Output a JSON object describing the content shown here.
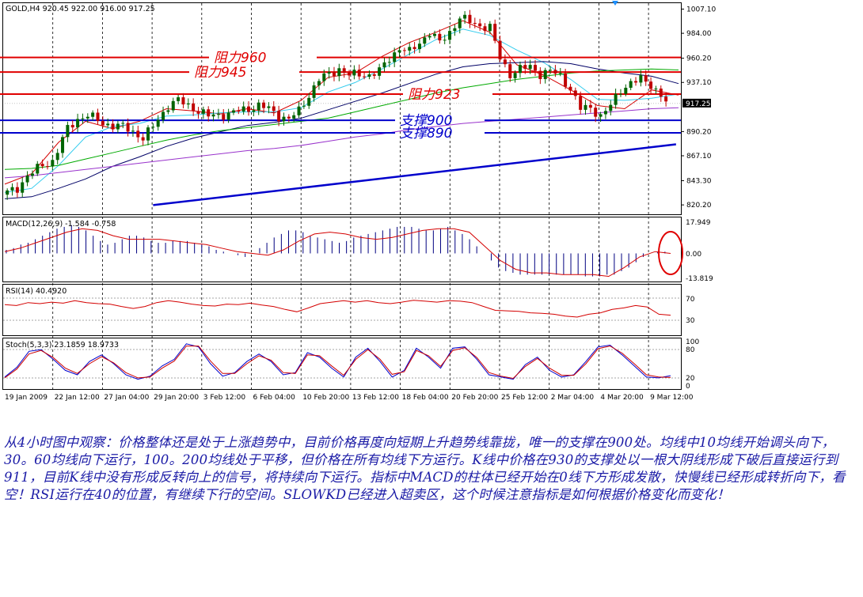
{
  "chart_data": [
    {
      "type": "candlestick",
      "symbol": "GOLD,H4",
      "header_values": "920.45 922.00 916.00 917.25",
      "title": "GOLD,H4 920.45 922.00 916.00 917.25",
      "ylim": [
        812,
        1012
      ],
      "y_ticks": [
        820.2,
        843.3,
        867.1,
        890.2,
        937.1,
        960.2,
        984.0,
        1007.1
      ],
      "y_tick_labels": [
        "820.20",
        "843.30",
        "867.10",
        "890.20",
        "937.10",
        "960.20",
        "984.00",
        "1007.10"
      ],
      "price_label": "917.25",
      "x_tick_labels": [
        "19 Jan 2009",
        "22 Jan 12:00",
        "27 Jan 04:00",
        "29 Jan 20:00",
        "3 Feb 12:00",
        "6 Feb 04:00",
        "10 Feb 20:00",
        "13 Feb 12:00",
        "18 Feb 04:00",
        "20 Feb 20:00",
        "25 Feb 12:00",
        "2 Mar 04:00",
        "4 Mar 20:00",
        "9 Mar 12:00"
      ],
      "close_path": [
        [
          0,
          832
        ],
        [
          2,
          836
        ],
        [
          4,
          848
        ],
        [
          7,
          858
        ],
        [
          9,
          862
        ],
        [
          12,
          893
        ],
        [
          14,
          902
        ],
        [
          16,
          906
        ],
        [
          19,
          898
        ],
        [
          21,
          896
        ],
        [
          23,
          895
        ],
        [
          25,
          890
        ],
        [
          27,
          884
        ],
        [
          29,
          895
        ],
        [
          32,
          915
        ],
        [
          34,
          920
        ],
        [
          36,
          915
        ],
        [
          38,
          910
        ],
        [
          40,
          905
        ],
        [
          42,
          906
        ],
        [
          44,
          907
        ],
        [
          46,
          910
        ],
        [
          48,
          912
        ],
        [
          50,
          915
        ],
        [
          52,
          912
        ],
        [
          54,
          905
        ],
        [
          56,
          902
        ],
        [
          58,
          910
        ],
        [
          60,
          925
        ],
        [
          62,
          940
        ],
        [
          64,
          945
        ],
        [
          66,
          950
        ],
        [
          68,
          944
        ],
        [
          70,
          945
        ],
        [
          72,
          944
        ],
        [
          74,
          948
        ],
        [
          76,
          960
        ],
        [
          78,
          970
        ],
        [
          80,
          966
        ],
        [
          82,
          975
        ],
        [
          84,
          985
        ],
        [
          86,
          975
        ],
        [
          88,
          985
        ],
        [
          90,
          999
        ],
        [
          92,
          995
        ],
        [
          94,
          991
        ],
        [
          96,
          990
        ],
        [
          98,
          960
        ],
        [
          100,
          945
        ],
        [
          102,
          950
        ],
        [
          104,
          952
        ],
        [
          106,
          945
        ],
        [
          108,
          948
        ],
        [
          110,
          943
        ],
        [
          112,
          931
        ],
        [
          114,
          912
        ],
        [
          116,
          913
        ],
        [
          118,
          905
        ],
        [
          120,
          915
        ],
        [
          122,
          930
        ],
        [
          124,
          937
        ],
        [
          126,
          940
        ],
        [
          128,
          935
        ],
        [
          130,
          925
        ],
        [
          131,
          918
        ]
      ],
      "high": 1002,
      "low": 826,
      "moving_averages": [
        {
          "name": "10",
          "color": "#d40000",
          "values": [
            840,
            850,
            880,
            900,
            893,
            900,
            912,
            910,
            907,
            912,
            908,
            920,
            942,
            946,
            962,
            975,
            985,
            996,
            985,
            954,
            944,
            930,
            915,
            912,
            930,
            925
          ]
        },
        {
          "name": "20",
          "color": "#33ccee",
          "values": [
            832,
            836,
            858,
            885,
            895,
            898,
            905,
            906,
            908,
            909,
            909,
            913,
            928,
            937,
            950,
            964,
            978,
            988,
            982,
            968,
            956,
            940,
            921,
            920,
            922,
            926
          ]
        },
        {
          "name": "60",
          "color": "#000066",
          "values": [
            826,
            828,
            836,
            845,
            857,
            866,
            876,
            884,
            890,
            896,
            899,
            903,
            911,
            919,
            927,
            936,
            945,
            952,
            955,
            956,
            957,
            955,
            950,
            946,
            943,
            936
          ]
        },
        {
          "name": "100",
          "color": "#00aa00",
          "values": [
            854,
            855,
            858,
            864,
            870,
            876,
            882,
            887,
            891,
            894,
            897,
            900,
            903,
            909,
            915,
            921,
            927,
            932,
            936,
            940,
            943,
            946,
            948,
            949,
            950,
            949
          ]
        },
        {
          "name": "200",
          "color": "#9933cc",
          "values": [
            846,
            848,
            851,
            854,
            857,
            860,
            863,
            866,
            869,
            872,
            874,
            877,
            881,
            885,
            888,
            892,
            895,
            898,
            900,
            902,
            904,
            906,
            908,
            910,
            912,
            913
          ]
        }
      ],
      "horizontal_levels": [
        {
          "label": "阻力960",
          "price": 961
        },
        {
          "label": "阻力945",
          "price": 947
        },
        {
          "label": "阻力923",
          "price": 926
        },
        {
          "label": "支撑900",
          "price": 901
        },
        {
          "label": "支撑890",
          "price": 889
        }
      ],
      "support_line": {
        "from": [
          29,
          820
        ],
        "to": [
          133,
          878
        ]
      },
      "current_price_line": 917
    },
    {
      "type": "histogram",
      "name": "MACD(12,26,9)",
      "header_values": "-1.584 -0.758",
      "title": "MACD(12,26,9) -1.584 -0.758",
      "ylim": [
        -15,
        19
      ],
      "y_tick_labels": [
        "17.949",
        "0.00",
        "-13.819"
      ],
      "histogram": [
        2,
        3,
        5,
        6,
        8,
        10,
        12,
        14,
        15,
        16,
        15,
        13,
        10,
        7,
        5,
        6,
        8,
        10,
        10,
        9,
        7,
        6,
        6,
        7,
        7,
        7,
        6,
        5,
        4,
        2,
        1,
        0,
        -1,
        -2,
        0,
        3,
        6,
        9,
        11,
        13,
        13,
        12,
        10,
        9,
        8,
        7,
        6,
        7,
        9,
        10,
        11,
        12,
        13,
        14,
        15,
        15,
        15,
        14,
        13,
        13,
        14,
        15,
        13,
        11,
        8,
        4,
        0,
        -4,
        -8,
        -10,
        -11,
        -12,
        -12,
        -12,
        -12,
        -12,
        -12,
        -12,
        -12,
        -12,
        -13,
        -13,
        -13,
        -12,
        -12,
        -10,
        -8,
        -5,
        -2,
        0,
        1,
        1,
        0
      ],
      "signal": [
        1,
        3,
        6,
        9,
        12,
        14,
        13,
        10,
        8,
        8,
        8,
        7,
        6,
        5,
        3,
        1,
        0,
        -1,
        2,
        7,
        11,
        12,
        11,
        9,
        8,
        9,
        11,
        13,
        14,
        14,
        12,
        4,
        -4,
        -9,
        -11,
        -11,
        -12,
        -12,
        -12,
        -13,
        -8,
        -2,
        1,
        0
      ],
      "annotation": "red ellipse"
    },
    {
      "type": "line",
      "name": "RSI(14)",
      "header_values": "40.4920",
      "title": "RSI(14) 40.4920",
      "ylim": [
        0,
        100
      ],
      "y_tick_labels": [
        "70",
        "30"
      ],
      "values": [
        62,
        60,
        66,
        64,
        67,
        65,
        70,
        66,
        64,
        63,
        58,
        54,
        58,
        66,
        70,
        67,
        63,
        60,
        59,
        63,
        62,
        65,
        61,
        58,
        52,
        47,
        55,
        64,
        67,
        70,
        67,
        70,
        66,
        64,
        67,
        71,
        69,
        67,
        70,
        69,
        66,
        58,
        50,
        49,
        48,
        45,
        44,
        42,
        38,
        36,
        42,
        45,
        52,
        55,
        60,
        57,
        42,
        40
      ]
    },
    {
      "type": "line",
      "name": "Stoch(5,3,3)",
      "header_values": "23.1859 18.9733",
      "title": "Stoch(5,3,3) 23.1859 18.9733",
      "ylim": [
        0,
        100
      ],
      "y_tick_labels": [
        "100",
        "80",
        "20",
        "0"
      ],
      "series": [
        {
          "name": "",
          "color": "#0000cc",
          "values": [
            20,
            42,
            78,
            82,
            60,
            35,
            25,
            55,
            70,
            50,
            25,
            15,
            22,
            45,
            60,
            95,
            88,
            50,
            22,
            30,
            55,
            72,
            55,
            25,
            30,
            75,
            65,
            40,
            20,
            65,
            85,
            55,
            20,
            35,
            85,
            65,
            40,
            85,
            88,
            60,
            25,
            20,
            15,
            48,
            65,
            35,
            20,
            25,
            55,
            88,
            92,
            70,
            45,
            20,
            18,
            23
          ]
        },
        {
          "name": "",
          "color": "#cc0000",
          "values": [
            18,
            38,
            72,
            80,
            64,
            40,
            28,
            50,
            66,
            52,
            30,
            18,
            20,
            40,
            56,
            90,
            90,
            56,
            28,
            28,
            50,
            68,
            58,
            30,
            28,
            70,
            68,
            45,
            24,
            60,
            82,
            60,
            26,
            32,
            80,
            68,
            44,
            80,
            86,
            64,
            30,
            22,
            17,
            44,
            62,
            40,
            24,
            24,
            50,
            84,
            90,
            74,
            50,
            25,
            20,
            19
          ]
        }
      ]
    }
  ],
  "commentary": "从4小时图中观察：价格整体还是处于上涨趋势中，目前价格再度向短期上升趋势线靠拢，唯一的支撑在900处。均线中10均线开始调头向下，30。60均线向下运行，100。200均线处于平移，但价格在所有均线下方运行。K线中价格在930的支撑处以一根大阴线形成下破后直接运行到911，目前K线中没有形成反转向上的信号，将持续向下运行。指标中MACD的柱体已经开始在0线下方形成发散，快慢线已经形成转折向下，看空！RSI运行在40的位置，有继续下行的空间。SLOWKD已经进入超卖区，这个时候注意指标是如何根据价格变化而变化！",
  "colors": {
    "up_candle": "#006400",
    "down_candle": "#c00000",
    "resistance": "#e00000",
    "support": "#0000cc",
    "grid": "#000000",
    "price_tag_bg": "#000000",
    "comment_text": "#1a1aa6"
  }
}
